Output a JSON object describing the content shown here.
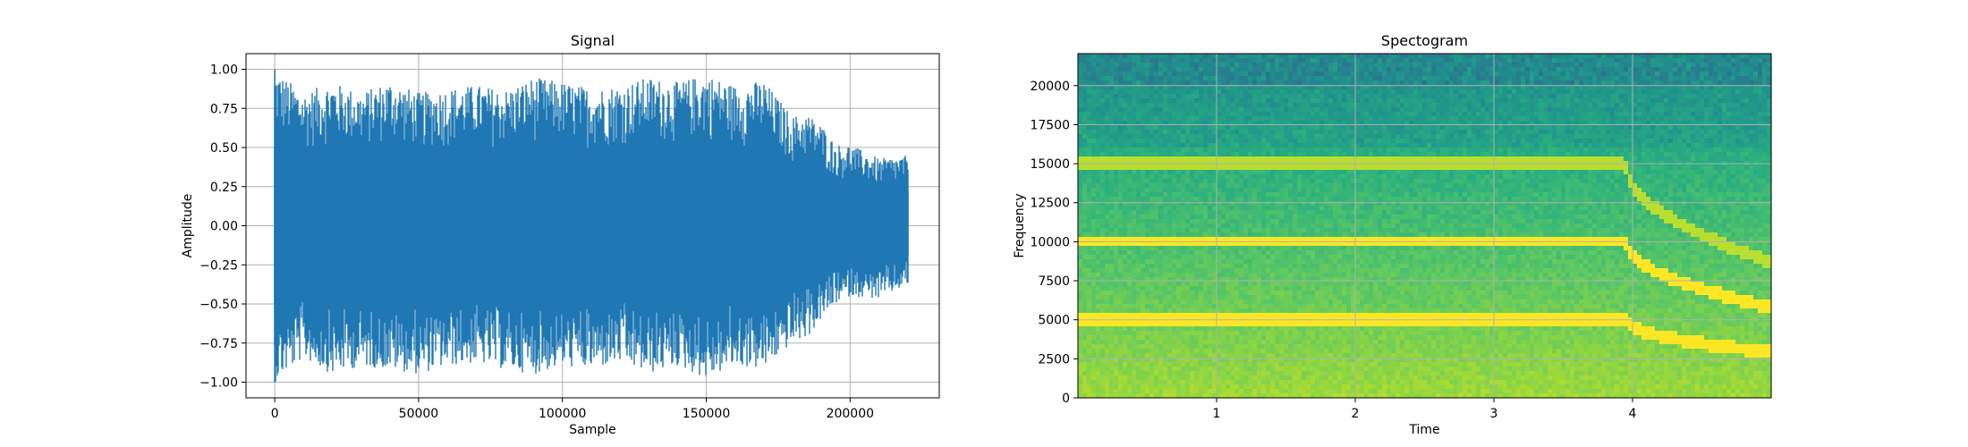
{
  "chart_data": [
    {
      "type": "line",
      "title": "Signal",
      "xlabel": "Sample",
      "ylabel": "Amplitude",
      "xlim": [
        -10000,
        231000
      ],
      "ylim": [
        -1.1,
        1.1
      ],
      "xticks": [
        0,
        50000,
        100000,
        150000,
        200000
      ],
      "xtick_labels": [
        "0",
        "50000",
        "100000",
        "150000",
        "200000"
      ],
      "yticks": [
        -1.0,
        -0.75,
        -0.5,
        -0.25,
        0.0,
        0.25,
        0.5,
        0.75,
        1.0
      ],
      "ytick_labels": [
        "−1.00",
        "−0.75",
        "−0.50",
        "−0.25",
        "0.00",
        "0.25",
        "0.50",
        "0.75",
        "1.00"
      ],
      "grid": true,
      "line_color": "#1f77b4",
      "series": [
        {
          "x": [
            0,
            10000,
            20000,
            30000,
            40000,
            50000,
            60000,
            70000,
            80000,
            90000,
            100000,
            110000,
            120000,
            130000,
            140000,
            150000,
            160000,
            170000,
            180000,
            185000,
            190000,
            195000,
            200000,
            210000,
            220000
          ],
          "upper": [
            1.0,
            0.85,
            0.92,
            0.85,
            0.93,
            0.85,
            0.88,
            0.9,
            0.87,
            0.95,
            0.92,
            0.88,
            0.9,
            0.95,
            0.92,
            0.97,
            0.9,
            0.93,
            0.7,
            0.72,
            0.65,
            0.52,
            0.52,
            0.43,
            0.45
          ],
          "lower": [
            -1.0,
            -0.85,
            -0.95,
            -0.9,
            -0.92,
            -0.95,
            -0.9,
            -0.88,
            -0.92,
            -0.95,
            -0.9,
            -0.92,
            -0.88,
            -0.95,
            -0.9,
            -0.98,
            -0.9,
            -0.92,
            -0.75,
            -0.72,
            -0.6,
            -0.5,
            -0.45,
            -0.47,
            -0.38
          ]
        }
      ]
    },
    {
      "type": "heatmap",
      "title": "Spectogram",
      "xlabel": "Time",
      "ylabel": "Frequency",
      "xlim": [
        0,
        5.0
      ],
      "ylim": [
        0,
        22050
      ],
      "xticks": [
        1,
        2,
        3,
        4
      ],
      "xtick_labels": [
        "1",
        "2",
        "3",
        "4"
      ],
      "yticks": [
        0,
        2500,
        5000,
        7500,
        10000,
        12500,
        15000,
        17500,
        20000
      ],
      "ytick_labels": [
        "0",
        "2500",
        "5000",
        "7500",
        "10000",
        "12500",
        "15000",
        "17500",
        "20000"
      ],
      "grid": true,
      "colormap": "viridis",
      "harmonics": [
        {
          "freq": 5000,
          "end_time": 3.95,
          "end_freq": 2900
        },
        {
          "freq": 10000,
          "end_time": 3.95,
          "end_freq": 5800
        },
        {
          "freq": 15000,
          "end_time": 3.95,
          "end_freq": 8700
        }
      ]
    }
  ]
}
